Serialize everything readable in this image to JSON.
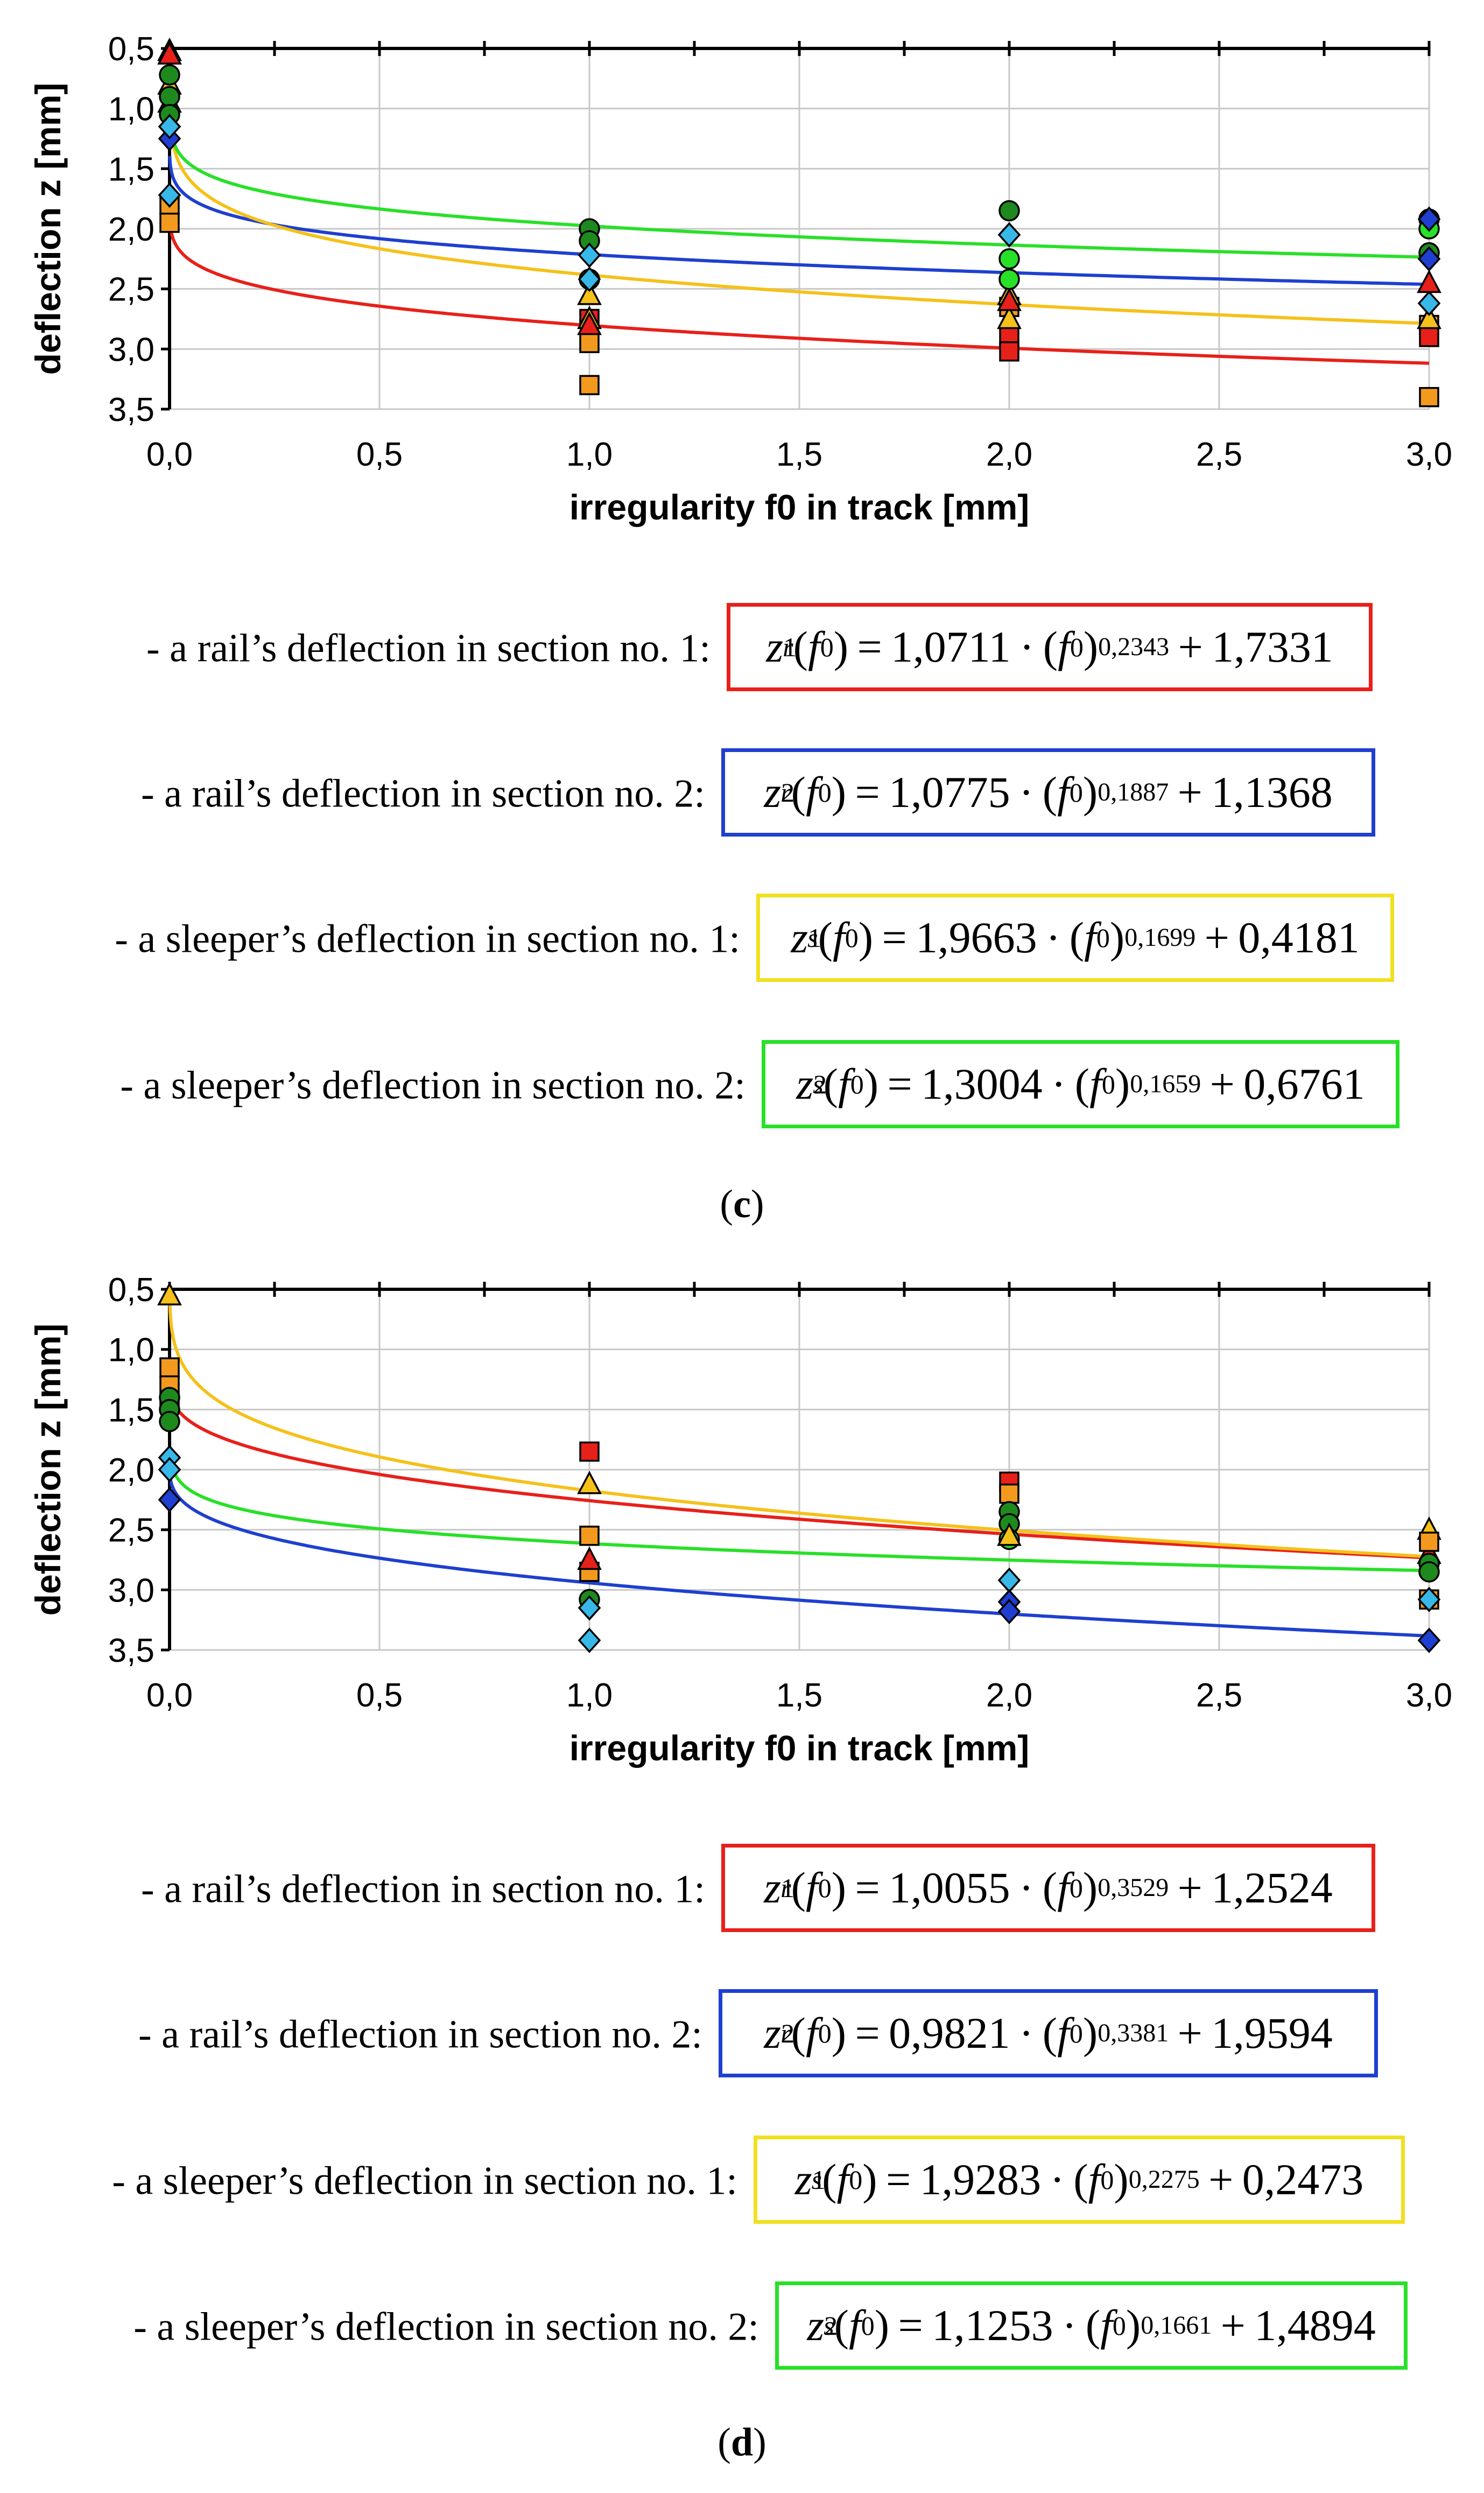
{
  "chart_data": [
    {
      "type": "scatter",
      "panel": "c",
      "xlabel": "irregularity f0 in track [mm]",
      "ylabel": "deflection z [mm]",
      "xlim": [
        0,
        3
      ],
      "ylim": [
        0.5,
        3.5
      ],
      "y_inverted": true,
      "x_ticks": [
        "0,0",
        "0,5",
        "1,0",
        "1,5",
        "2,0",
        "2,5",
        "3,0"
      ],
      "y_ticks": [
        "0,5",
        "1,0",
        "1,5",
        "2,0",
        "2,5",
        "3,0",
        "3,5"
      ],
      "grid": true,
      "curves": [
        {
          "color": "#e8201a",
          "a": 1.0711,
          "b": 0.2343,
          "c": 1.7331
        },
        {
          "color": "#1f3fd0",
          "a": 1.0775,
          "b": 0.1887,
          "c": 1.1368
        },
        {
          "color": "#f5c11a",
          "a": 1.9663,
          "b": 0.1699,
          "c": 0.4181
        },
        {
          "color": "#28e028",
          "a": 1.3004,
          "b": 0.1659,
          "c": 0.6761
        }
      ],
      "points": [
        {
          "marker": "square",
          "color": "#f39a1e",
          "x": 0,
          "y": [
            1.8,
            1.95
          ]
        },
        {
          "marker": "triangle",
          "color": "#f5c11a",
          "x": 0,
          "y": [
            0.52,
            0.8
          ]
        },
        {
          "marker": "triangle",
          "color": "#e8201a",
          "x": 0,
          "y": [
            0.55,
            0.95
          ]
        },
        {
          "marker": "circle",
          "color": "#1e8a1e",
          "x": 0,
          "y": [
            0.72,
            0.9,
            1.05
          ]
        },
        {
          "marker": "diamond",
          "color": "#1f3fd0",
          "x": 0,
          "y": [
            1.25
          ]
        },
        {
          "marker": "diamond",
          "color": "#38b8e8",
          "x": 0,
          "y": [
            1.15,
            1.72
          ]
        },
        {
          "marker": "square",
          "color": "#f39a1e",
          "x": 1,
          "y": [
            2.95,
            3.3
          ]
        },
        {
          "marker": "square",
          "color": "#e8201a",
          "x": 1,
          "y": [
            2.75
          ]
        },
        {
          "marker": "triangle",
          "color": "#f5c11a",
          "x": 1,
          "y": [
            2.55,
            2.75
          ]
        },
        {
          "marker": "triangle",
          "color": "#e8201a",
          "x": 1,
          "y": [
            2.8
          ]
        },
        {
          "marker": "circle",
          "color": "#1e8a1e",
          "x": 1,
          "y": [
            2.0,
            2.1
          ]
        },
        {
          "marker": "circle",
          "color": "#28e028",
          "x": 1,
          "y": [
            2.42
          ]
        },
        {
          "marker": "diamond",
          "color": "#38b8e8",
          "x": 1,
          "y": [
            2.22,
            2.42
          ]
        },
        {
          "marker": "square",
          "color": "#e8201a",
          "x": 2,
          "y": [
            2.9,
            3.02
          ]
        },
        {
          "marker": "square",
          "color": "#f39a1e",
          "x": 2,
          "y": [
            2.65
          ]
        },
        {
          "marker": "triangle",
          "color": "#f5c11a",
          "x": 2,
          "y": [
            2.55,
            2.75
          ]
        },
        {
          "marker": "triangle",
          "color": "#e8201a",
          "x": 2,
          "y": [
            2.6
          ]
        },
        {
          "marker": "circle",
          "color": "#1e8a1e",
          "x": 2,
          "y": [
            1.85
          ]
        },
        {
          "marker": "circle",
          "color": "#28e028",
          "x": 2,
          "y": [
            2.25,
            2.42
          ]
        },
        {
          "marker": "diamond",
          "color": "#38b8e8",
          "x": 2,
          "y": [
            2.05
          ]
        },
        {
          "marker": "square",
          "color": "#f39a1e",
          "x": 3,
          "y": [
            2.8,
            3.4
          ]
        },
        {
          "marker": "square",
          "color": "#e8201a",
          "x": 3,
          "y": [
            2.9
          ]
        },
        {
          "marker": "triangle",
          "color": "#f5c11a",
          "x": 3,
          "y": [
            2.75
          ]
        },
        {
          "marker": "triangle",
          "color": "#e8201a",
          "x": 3,
          "y": [
            2.45
          ]
        },
        {
          "marker": "circle",
          "color": "#1e8a1e",
          "x": 3,
          "y": [
            1.92,
            2.2
          ]
        },
        {
          "marker": "circle",
          "color": "#28e028",
          "x": 3,
          "y": [
            2.0
          ]
        },
        {
          "marker": "diamond",
          "color": "#1f3fd0",
          "x": 3,
          "y": [
            1.92,
            2.25
          ]
        },
        {
          "marker": "diamond",
          "color": "#38b8e8",
          "x": 3,
          "y": [
            2.62
          ]
        }
      ]
    },
    {
      "type": "scatter",
      "panel": "d",
      "xlabel": "irregularity f0 in track [mm]",
      "ylabel": "deflection z [mm]",
      "xlim": [
        0,
        3
      ],
      "ylim": [
        0.5,
        3.5
      ],
      "y_inverted": true,
      "x_ticks": [
        "0,0",
        "0,5",
        "1,0",
        "1,5",
        "2,0",
        "2,5",
        "3,0"
      ],
      "y_ticks": [
        "0,5",
        "1,0",
        "1,5",
        "2,0",
        "2,5",
        "3,0",
        "3,5"
      ],
      "grid": true,
      "curves": [
        {
          "color": "#e8201a",
          "a": 1.0055,
          "b": 0.3529,
          "c": 1.2524
        },
        {
          "color": "#1f3fd0",
          "a": 0.9821,
          "b": 0.3381,
          "c": 1.9594
        },
        {
          "color": "#f5c11a",
          "a": 1.9283,
          "b": 0.2275,
          "c": 0.2473
        },
        {
          "color": "#28e028",
          "a": 1.1253,
          "b": 0.1661,
          "c": 1.4894
        }
      ],
      "points": [
        {
          "marker": "triangle",
          "color": "#f5c11a",
          "x": 0,
          "y": [
            0.55
          ]
        },
        {
          "marker": "square",
          "color": "#f39a1e",
          "x": 0,
          "y": [
            1.15,
            1.3,
            1.45
          ]
        },
        {
          "marker": "circle",
          "color": "#1e8a1e",
          "x": 0,
          "y": [
            1.4,
            1.5,
            1.6
          ]
        },
        {
          "marker": "diamond",
          "color": "#38b8e8",
          "x": 0,
          "y": [
            1.9,
            2.0
          ]
        },
        {
          "marker": "diamond",
          "color": "#1f3fd0",
          "x": 0,
          "y": [
            2.25
          ]
        },
        {
          "marker": "square",
          "color": "#e8201a",
          "x": 1,
          "y": [
            1.85
          ]
        },
        {
          "marker": "triangle",
          "color": "#f5c11a",
          "x": 1,
          "y": [
            2.12
          ]
        },
        {
          "marker": "square",
          "color": "#f39a1e",
          "x": 1,
          "y": [
            2.55,
            2.85
          ]
        },
        {
          "marker": "triangle",
          "color": "#e8201a",
          "x": 1,
          "y": [
            2.75
          ]
        },
        {
          "marker": "circle",
          "color": "#1e8a1e",
          "x": 1,
          "y": [
            3.08
          ]
        },
        {
          "marker": "diamond",
          "color": "#38b8e8",
          "x": 1,
          "y": [
            3.15,
            3.42
          ]
        },
        {
          "marker": "square",
          "color": "#e8201a",
          "x": 2,
          "y": [
            2.1
          ]
        },
        {
          "marker": "square",
          "color": "#f39a1e",
          "x": 2,
          "y": [
            2.2
          ]
        },
        {
          "marker": "circle",
          "color": "#1e8a1e",
          "x": 2,
          "y": [
            2.35,
            2.45
          ]
        },
        {
          "marker": "circle",
          "color": "#28e028",
          "x": 2,
          "y": [
            2.58
          ]
        },
        {
          "marker": "triangle",
          "color": "#f5c11a",
          "x": 2,
          "y": [
            2.55
          ]
        },
        {
          "marker": "diamond",
          "color": "#38b8e8",
          "x": 2,
          "y": [
            2.92
          ]
        },
        {
          "marker": "diamond",
          "color": "#1f3fd0",
          "x": 2,
          "y": [
            3.1,
            3.18
          ]
        },
        {
          "marker": "triangle",
          "color": "#f5c11a",
          "x": 3,
          "y": [
            2.5
          ]
        },
        {
          "marker": "triangle",
          "color": "#e8201a",
          "x": 3,
          "y": [
            2.7
          ]
        },
        {
          "marker": "square",
          "color": "#f39a1e",
          "x": 3,
          "y": [
            2.6,
            3.08
          ]
        },
        {
          "marker": "circle",
          "color": "#1e8a1e",
          "x": 3,
          "y": [
            2.78,
            2.85
          ]
        },
        {
          "marker": "diamond",
          "color": "#38b8e8",
          "x": 3,
          "y": [
            3.08
          ]
        },
        {
          "marker": "diamond",
          "color": "#1f3fd0",
          "x": 3,
          "y": [
            3.42
          ]
        }
      ]
    }
  ],
  "equations_c": [
    {
      "label": "- a rail’s deflection in section no. 1:",
      "sym": "z",
      "sub": "r",
      "sup": "1",
      "coef": "1,0711",
      "exp": "0,2343",
      "const": "1,7331",
      "border": "#e8201a"
    },
    {
      "label": "- a rail’s deflection in section no. 2:",
      "sym": "z",
      "sub": "r",
      "sup": "2",
      "coef": "1,0775",
      "exp": "0,1887",
      "const": "1,1368",
      "border": "#1f3fd0"
    },
    {
      "label": "- a sleeper’s deflection in section no. 1:",
      "sym": "z",
      "sub": "s",
      "sup": "1",
      "coef": "1,9663",
      "exp": "0,1699",
      "const": "0,4181",
      "border": "#f0e020"
    },
    {
      "label": "- a sleeper’s deflection in section no. 2:",
      "sym": "z",
      "sub": "s",
      "sup": "2",
      "coef": "1,3004",
      "exp": "0,1659",
      "const": "0,6761",
      "border": "#28e028"
    }
  ],
  "equations_d": [
    {
      "label": "- a rail’s deflection in section no. 1:",
      "sym": "z",
      "sub": "r",
      "sup": "1",
      "coef": "1,0055",
      "exp": "0,3529",
      "const": "1,2524",
      "border": "#e8201a"
    },
    {
      "label": "- a rail’s deflection in section no. 2:",
      "sym": "z",
      "sub": "r",
      "sup": "2",
      "coef": "0,9821",
      "exp": "0,3381",
      "const": "1,9594",
      "border": "#1f3fd0"
    },
    {
      "label": "- a sleeper’s deflection in section no. 1:",
      "sym": "z",
      "sub": "s",
      "sup": "1",
      "coef": "1,9283",
      "exp": "0,2275",
      "const": "0,2473",
      "border": "#f0e020"
    },
    {
      "label": "- a sleeper’s deflection in section no. 2:",
      "sym": "z",
      "sub": "s",
      "sup": "2",
      "coef": "1,1253",
      "exp": "0,1661",
      "const": "1,4894",
      "border": "#28e028"
    }
  ],
  "captions": {
    "c": "c",
    "d": "d"
  }
}
